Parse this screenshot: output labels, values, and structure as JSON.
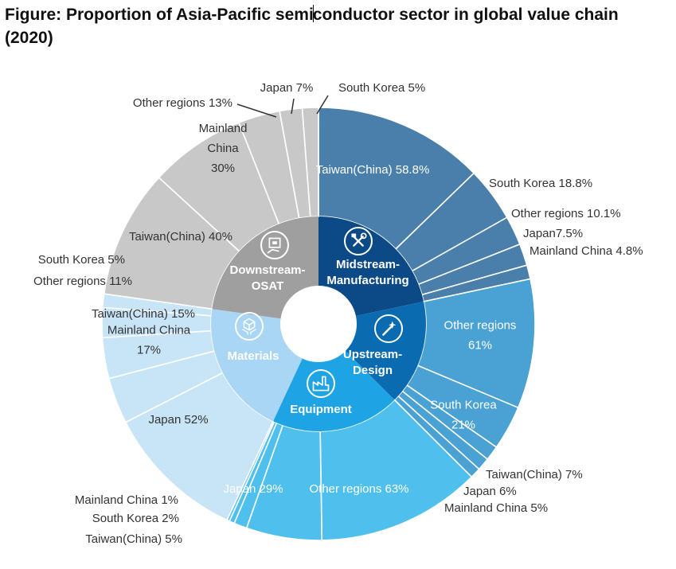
{
  "title": {
    "prefix": "Figure: Proportion of Asia-Pacific semi",
    "suffix": "conductor sector in global value chain (2020)"
  },
  "colors": {
    "manufacturing_inner": "#0b4a86",
    "manufacturing_outer": "#4a7fab",
    "design_inner": "#0a6bb1",
    "design_outer": "#4aa1d3",
    "equipment_inner": "#1ea4e4",
    "equipment_outer": "#4fc0ee",
    "materials_inner": "#a9d6f4",
    "materials_outer": "#c8e5f8",
    "osat_inner": "#9f9f9f",
    "osat_outer": "#c8c8c8"
  },
  "chart_data": {
    "type": "sunburst",
    "title": "Figure: Proportion of Asia-Pacific semiconductor sector in global value chain (2020)",
    "segments": [
      {
        "name": "Midstream-\nManufacturing",
        "icon": "tools-icon",
        "items": [
          {
            "label": "Taiwan(China) 58.8%",
            "value": 58.8
          },
          {
            "label": "South Korea 18.8%",
            "value": 18.8
          },
          {
            "label": "Other regions 10.1%",
            "value": 10.1
          },
          {
            "label": "Japan7.5%",
            "value": 7.5
          },
          {
            "label": "Mainland China 4.8%",
            "value": 4.8
          }
        ]
      },
      {
        "name": "Upstream-\nDesign",
        "icon": "magic-wand-icon",
        "items": [
          {
            "label": "Other regions\n61%",
            "value": 61
          },
          {
            "label": "South Korea\n21%",
            "value": 21
          },
          {
            "label": "Taiwan(China) 7%",
            "value": 7
          },
          {
            "label": "Japan 6%",
            "value": 6
          },
          {
            "label": "Mainland China 5%",
            "value": 5
          }
        ]
      },
      {
        "name": "Equipment",
        "icon": "factory-icon",
        "items": [
          {
            "label": "Other regions 63%",
            "value": 63
          },
          {
            "label": "Japan 29%",
            "value": 29
          },
          {
            "label": "Taiwan(China) 5%",
            "value": 5
          },
          {
            "label": "South Korea 2%",
            "value": 2
          },
          {
            "label": "Mainland China 1%",
            "value": 1
          }
        ]
      },
      {
        "name": "Materials",
        "icon": "boxes-icon",
        "items": [
          {
            "label": "Japan 52%",
            "value": 52
          },
          {
            "label": "Mainland China\n17%",
            "value": 17
          },
          {
            "label": "Taiwan(China) 15%",
            "value": 15
          },
          {
            "label": "Other regions 11%",
            "value": 11
          },
          {
            "label": "South Korea 5%",
            "value": 5
          }
        ]
      },
      {
        "name": "Downstream-\nOSAT",
        "icon": "chip-hand-icon",
        "items": [
          {
            "label": "Taiwan(China) 40%",
            "value": 40
          },
          {
            "label": "Mainland\nChina\n30%",
            "value": 30
          },
          {
            "label": "Other regions 13%",
            "value": 13
          },
          {
            "label": "Japan 7%",
            "value": 7
          },
          {
            "label": "South Korea 5%",
            "value": 5
          }
        ]
      }
    ]
  }
}
